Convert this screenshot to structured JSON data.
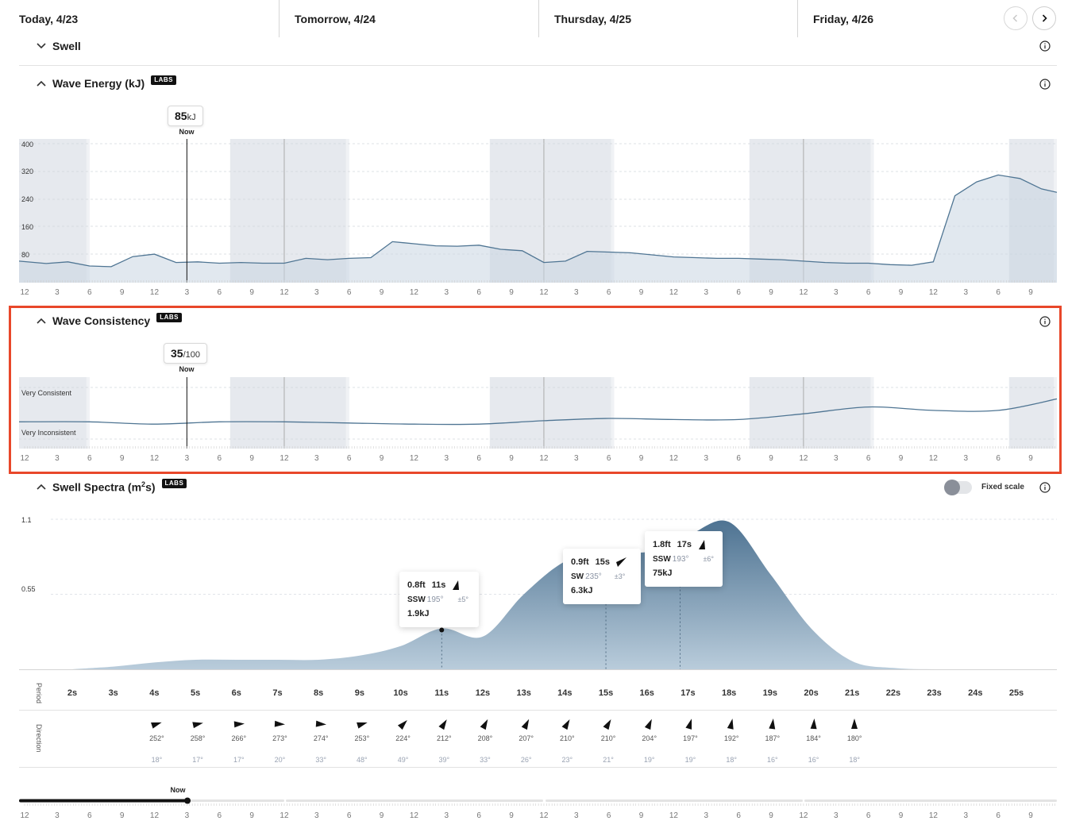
{
  "days": [
    {
      "label": "Today, 4/23"
    },
    {
      "label": "Tomorrow, 4/24"
    },
    {
      "label": "Thursday, 4/25"
    },
    {
      "label": "Friday, 4/26"
    }
  ],
  "hour_ticks": [
    "12",
    "3",
    "6",
    "9",
    "12",
    "3",
    "6",
    "9",
    "12",
    "3",
    "6",
    "9",
    "12",
    "3",
    "6",
    "9",
    "12",
    "3",
    "6",
    "9",
    "12",
    "3",
    "6",
    "9",
    "12",
    "3",
    "6",
    "9",
    "12",
    "3",
    "6",
    "9"
  ],
  "swell": {
    "title": "Swell"
  },
  "wave_energy": {
    "title": "Wave Energy (kJ)",
    "labs": "LABS",
    "now_value": "85",
    "now_unit": "kJ",
    "now_label": "Now",
    "y_ticks": [
      "400",
      "320",
      "240",
      "160",
      "80"
    ]
  },
  "wave_consistency": {
    "title": "Wave Consistency",
    "labs": "LABS",
    "now_value": "35",
    "now_unit": "/100",
    "now_label": "Now",
    "top_label": "Very Consistent",
    "bottom_label": "Very Inconsistent"
  },
  "swell_spectra": {
    "title_main": "Swell Spectra (m",
    "title_sup": "2",
    "title_end": "s)",
    "labs": "LABS",
    "fixed_scale": "Fixed scale",
    "y_ticks": [
      "1.1",
      "0.55"
    ],
    "period_label": "Period",
    "direction_label": "Direction",
    "periods": [
      "2s",
      "3s",
      "4s",
      "5s",
      "6s",
      "7s",
      "8s",
      "9s",
      "10s",
      "11s",
      "12s",
      "13s",
      "14s",
      "15s",
      "16s",
      "17s",
      "18s",
      "19s",
      "20s",
      "21s",
      "22s",
      "23s",
      "24s",
      "25s"
    ],
    "directions": [
      {
        "deg": "252°",
        "spread": "18°",
        "angle": 252
      },
      {
        "deg": "258°",
        "spread": "17°",
        "angle": 258
      },
      {
        "deg": "266°",
        "spread": "17°",
        "angle": 266
      },
      {
        "deg": "273°",
        "spread": "20°",
        "angle": 273
      },
      {
        "deg": "274°",
        "spread": "33°",
        "angle": 274
      },
      {
        "deg": "253°",
        "spread": "48°",
        "angle": 253
      },
      {
        "deg": "224°",
        "spread": "49°",
        "angle": 224
      },
      {
        "deg": "212°",
        "spread": "39°",
        "angle": 212
      },
      {
        "deg": "208°",
        "spread": "33°",
        "angle": 208
      },
      {
        "deg": "207°",
        "spread": "26°",
        "angle": 207
      },
      {
        "deg": "210°",
        "spread": "23°",
        "angle": 210
      },
      {
        "deg": "210°",
        "spread": "21°",
        "angle": 210
      },
      {
        "deg": "204°",
        "spread": "19°",
        "angle": 204
      },
      {
        "deg": "197°",
        "spread": "19°",
        "angle": 197
      },
      {
        "deg": "192°",
        "spread": "18°",
        "angle": 192
      },
      {
        "deg": "187°",
        "spread": "16°",
        "angle": 187
      },
      {
        "deg": "184°",
        "spread": "16°",
        "angle": 184
      },
      {
        "deg": "180°",
        "spread": "18°",
        "angle": 180
      }
    ],
    "peaks": [
      {
        "height": "0.8ft",
        "period": "11s",
        "dir": "SSW",
        "deg": "195°",
        "spread": "±5°",
        "energy": "1.9kJ"
      },
      {
        "height": "0.9ft",
        "period": "15s",
        "dir": "SW",
        "deg": "235°",
        "spread": "±3°",
        "energy": "6.3kJ"
      },
      {
        "height": "1.8ft",
        "period": "17s",
        "dir": "SSW",
        "deg": "193°",
        "spread": "±6°",
        "energy": "75kJ"
      }
    ]
  },
  "timeline": {
    "now_label": "Now",
    "progress": 0.163
  },
  "chart_data": [
    {
      "type": "area",
      "title": "Wave Energy (kJ)",
      "ylim": [
        0,
        400
      ],
      "x_unit": "hours from Today 12am (3-hour ticks)",
      "x": [
        0,
        2,
        4,
        6,
        8,
        10,
        12,
        14,
        16,
        18,
        20,
        22,
        24,
        26,
        28,
        30,
        32,
        34,
        36,
        38,
        40,
        42,
        44,
        46,
        48,
        50,
        52,
        54,
        56,
        58,
        60,
        62,
        64,
        66,
        68,
        70,
        72,
        74,
        76,
        78,
        80,
        82,
        84,
        86,
        88,
        90,
        92,
        94,
        96
      ],
      "values": [
        62,
        55,
        60,
        48,
        46,
        75,
        82,
        58,
        60,
        56,
        58,
        56,
        56,
        70,
        66,
        70,
        72,
        118,
        112,
        106,
        105,
        108,
        96,
        92,
        58,
        62,
        90,
        88,
        86,
        80,
        74,
        72,
        70,
        70,
        68,
        66,
        62,
        58,
        56,
        56,
        52,
        50,
        60,
        250,
        290,
        310,
        300,
        270,
        260
      ],
      "now_x": 15,
      "now_value": 85
    },
    {
      "type": "line",
      "title": "Wave Consistency",
      "ylim": [
        0,
        100
      ],
      "x": [
        0,
        6,
        12,
        18,
        24,
        30,
        36,
        42,
        48,
        54,
        60,
        66,
        72,
        78,
        84,
        90,
        96
      ],
      "values": [
        35,
        35,
        33,
        35,
        35,
        34,
        33,
        33,
        36,
        38,
        37,
        37,
        42,
        48,
        45,
        45,
        55
      ],
      "now_value": 35
    },
    {
      "type": "area",
      "title": "Swell Spectra (m2s)",
      "ylim": [
        0,
        1.1
      ],
      "x": [
        2,
        3,
        4,
        5,
        6,
        7,
        8,
        9,
        10,
        11,
        12,
        13,
        14,
        15,
        16,
        17,
        18,
        19,
        20,
        21,
        22,
        23,
        24,
        25
      ],
      "values": [
        0.0,
        0.02,
        0.05,
        0.07,
        0.07,
        0.07,
        0.07,
        0.1,
        0.17,
        0.3,
        0.24,
        0.55,
        0.79,
        0.87,
        0.86,
        0.98,
        1.08,
        0.7,
        0.3,
        0.06,
        0.01,
        0.0,
        0.0,
        0.0
      ]
    }
  ]
}
